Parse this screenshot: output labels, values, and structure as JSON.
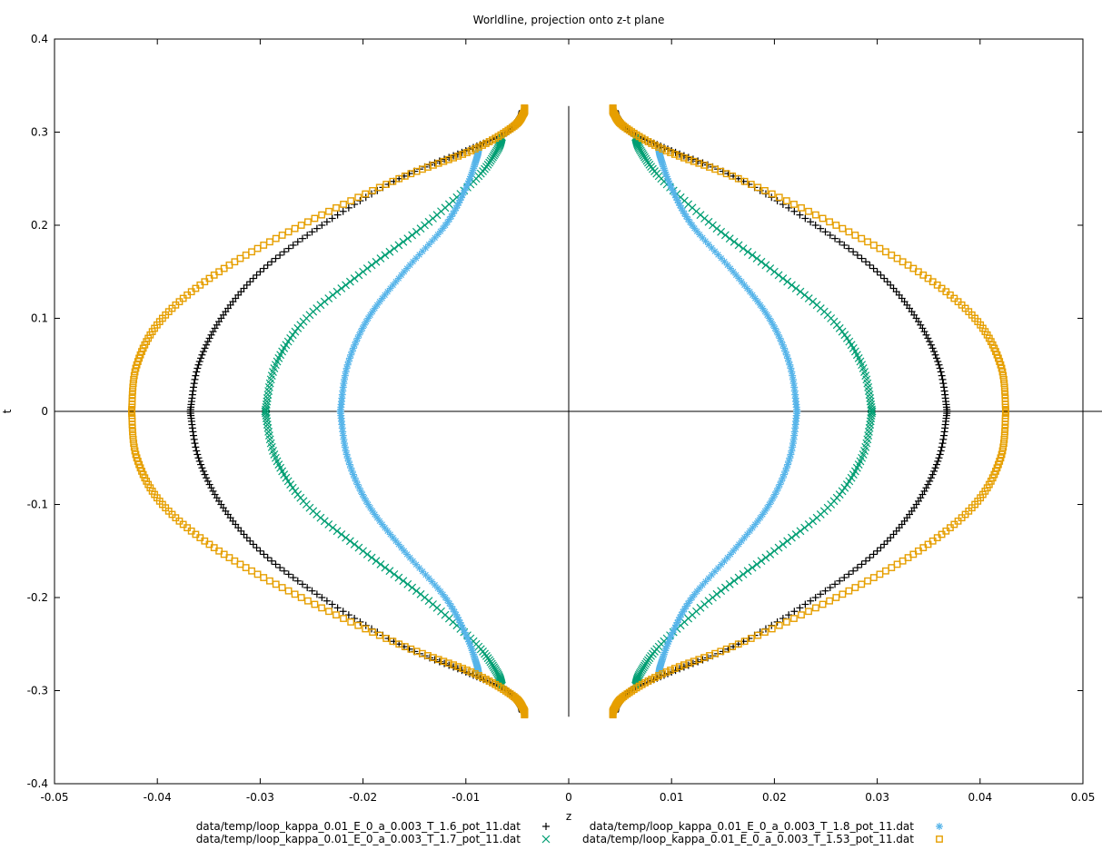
{
  "chart_data": {
    "type": "scatter",
    "title": "Worldline, projection onto z-t plane",
    "xlabel": "z",
    "ylabel": "t",
    "xlim": [
      -0.05,
      0.05
    ],
    "ylim": [
      -0.4,
      0.4
    ],
    "x_ticks": [
      -0.05,
      -0.04,
      -0.03,
      -0.02,
      -0.01,
      0,
      0.01,
      0.02,
      0.03,
      0.04,
      0.05
    ],
    "x_tick_labels": [
      "-0.05",
      "-0.04",
      "-0.03",
      "-0.02",
      "-0.01",
      "0",
      "0.01",
      "0.02",
      "0.03",
      "0.04",
      "0.05"
    ],
    "y_ticks": [
      -0.4,
      -0.3,
      -0.2,
      -0.1,
      0,
      0.1,
      0.2,
      0.3,
      0.4
    ],
    "y_tick_labels": [
      "-0.4",
      "-0.3",
      "-0.2",
      "-0.1",
      "0",
      "0.1",
      "0.2",
      "0.3",
      "0.4"
    ],
    "grid": false,
    "zero_axes": true,
    "legend_position": "bottom",
    "series": [
      {
        "name": "data/temp/loop_kappa_0.01_E_0_a_0.003_T_1.6_pot_11.dat",
        "marker": "plus",
        "color": "#000000",
        "points": [
          [
            0.0368,
            0.0
          ],
          [
            0.036,
            0.05
          ],
          [
            0.0338,
            0.1
          ],
          [
            0.03,
            0.15
          ],
          [
            0.024,
            0.2
          ],
          [
            0.0165,
            0.25
          ],
          [
            0.01,
            0.28
          ],
          [
            0.006,
            0.3
          ],
          [
            0.0048,
            0.315
          ],
          [
            0.0045,
            0.323
          ]
        ]
      },
      {
        "name": "data/temp/loop_kappa_0.01_E_0_a_0.003_T_1.7_pot_11.dat",
        "marker": "cross",
        "color": "#009e73",
        "points": [
          [
            0.0295,
            0.0
          ],
          [
            0.0285,
            0.05
          ],
          [
            0.0255,
            0.1
          ],
          [
            0.02,
            0.15
          ],
          [
            0.014,
            0.2
          ],
          [
            0.009,
            0.25
          ],
          [
            0.007,
            0.28
          ],
          [
            0.0065,
            0.295
          ]
        ]
      },
      {
        "name": "data/temp/loop_kappa_0.01_E_0_a_0.003_T_1.8_pot_11.dat",
        "marker": "star",
        "color": "#56b4e9",
        "points": [
          [
            0.0222,
            0.0
          ],
          [
            0.0215,
            0.05
          ],
          [
            0.0195,
            0.1
          ],
          [
            0.016,
            0.15
          ],
          [
            0.012,
            0.2
          ],
          [
            0.01,
            0.24
          ],
          [
            0.009,
            0.27
          ],
          [
            0.0088,
            0.28
          ]
        ]
      },
      {
        "name": "data/temp/loop_kappa_0.01_E_0_a_0.003_T_1.53_pot_11.dat",
        "marker": "square",
        "color": "#e69f00",
        "points": [
          [
            0.0425,
            0.0
          ],
          [
            0.042,
            0.05
          ],
          [
            0.0395,
            0.1
          ],
          [
            0.034,
            0.15
          ],
          [
            0.026,
            0.2
          ],
          [
            0.0165,
            0.25
          ],
          [
            0.0095,
            0.28
          ],
          [
            0.0055,
            0.305
          ],
          [
            0.0044,
            0.32
          ],
          [
            0.0043,
            0.326
          ]
        ]
      }
    ]
  }
}
